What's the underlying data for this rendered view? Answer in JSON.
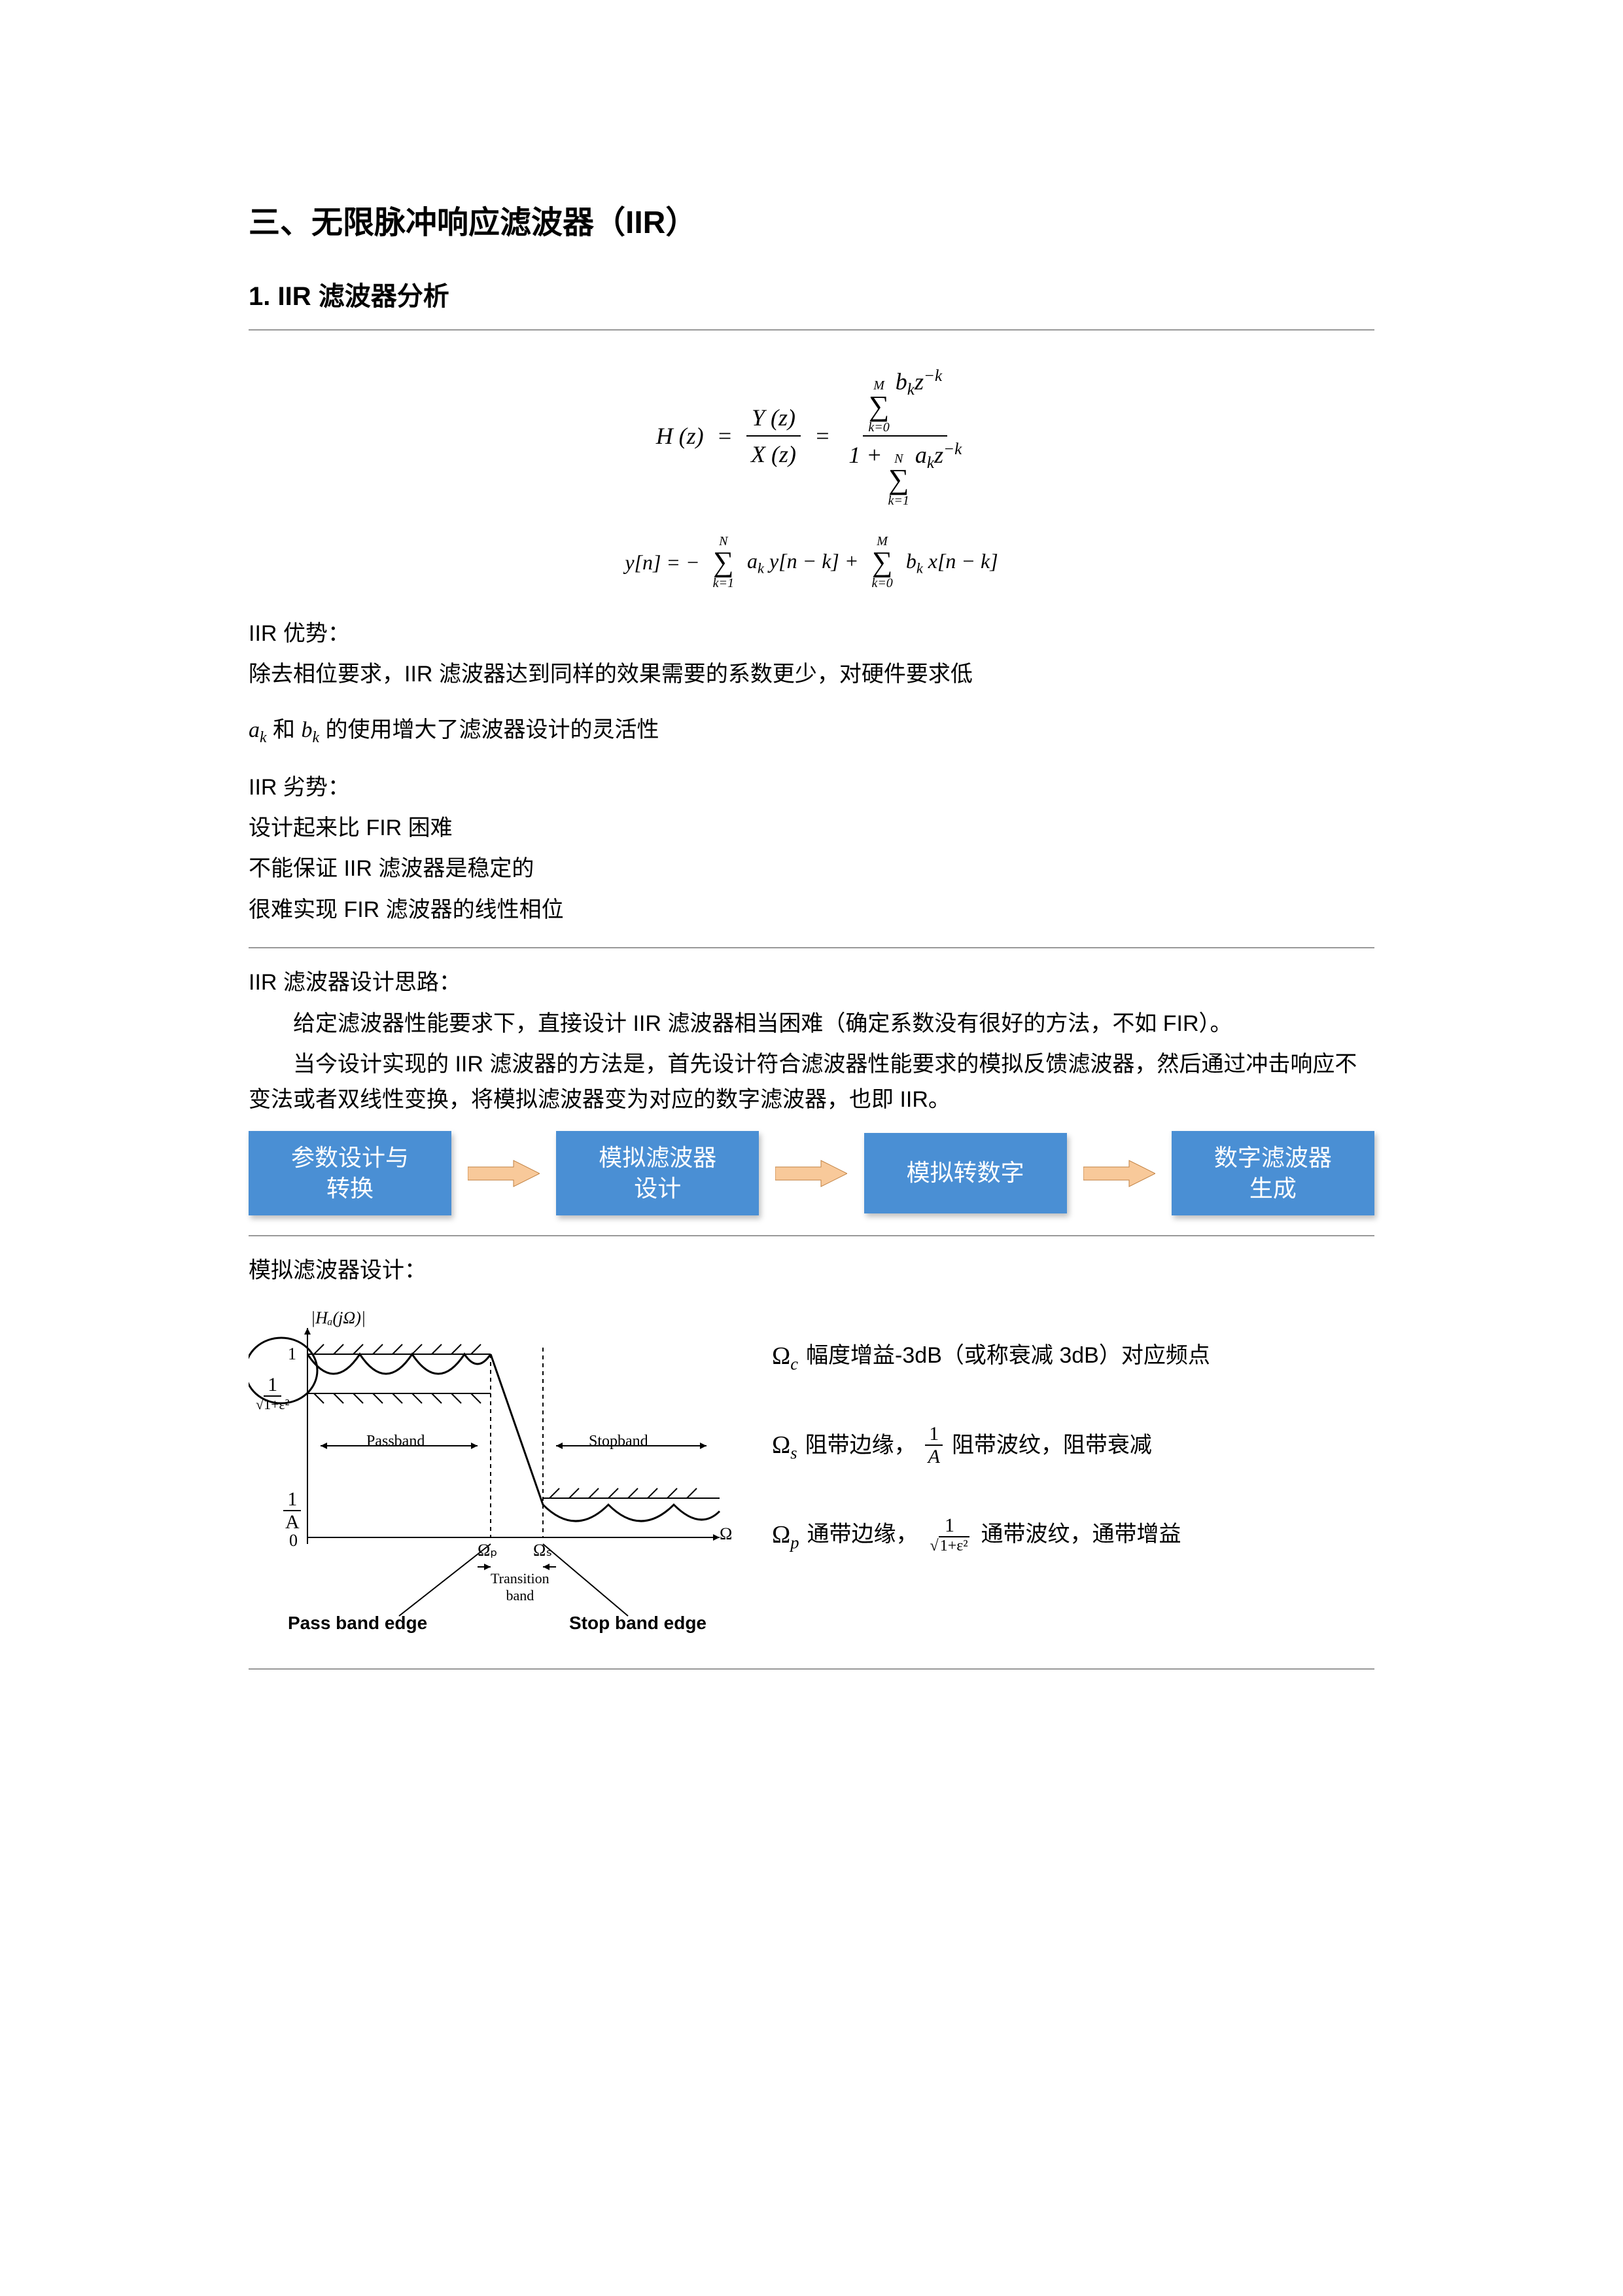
{
  "title": "三、无限脉冲响应滤波器（IIR）",
  "subtitle": "1. IIR 滤波器分析",
  "formula1_lhs": "H (z)",
  "formula1_eq": "=",
  "formula1_frac1_num": "Y (z)",
  "formula1_frac1_den": "X (z)",
  "formula1_frac2_num_sum_upper": "M",
  "formula1_frac2_num_sum_lower": "k=0",
  "formula1_frac2_num_rest": " b",
  "formula1_frac2_num_sub": "k",
  "formula1_frac2_num_rest2": "z",
  "formula1_frac2_num_sup": "−k",
  "formula1_frac2_den_lead": "1 + ",
  "formula1_frac2_den_sum_upper": "N",
  "formula1_frac2_den_sum_lower": "k=1",
  "formula1_frac2_den_rest": " a",
  "formula1_frac2_den_sub": "k",
  "formula1_frac2_den_rest2": "z",
  "formula1_frac2_den_sup": "−k",
  "formula2_lhs": "y[n] = −",
  "formula2_sum1_upper": "N",
  "formula2_sum1_lower": "k=1",
  "formula2_mid1": "a",
  "formula2_mid1_sub": "k",
  "formula2_mid1_rest": " y[n − k] + ",
  "formula2_sum2_upper": "M",
  "formula2_sum2_lower": "k=0",
  "formula2_mid2": "b",
  "formula2_mid2_sub": "k",
  "formula2_mid2_rest": " x[n − k]",
  "adv_title": "IIR 优势：",
  "adv_line1": "除去相位要求，IIR 滤波器达到同样的效果需要的系数更少，对硬件要求低",
  "adv_line2_pre": "",
  "adv_line2_a": "a",
  "adv_line2_ak": "k",
  "adv_line2_mid": " 和 ",
  "adv_line2_b": "b",
  "adv_line2_bk": "k",
  "adv_line2_post": " 的使用增大了滤波器设计的灵活性",
  "dis_title": "IIR 劣势：",
  "dis_line1": "设计起来比 FIR 困难",
  "dis_line2": "不能保证 IIR 滤波器是稳定的",
  "dis_line3": "很难实现 FIR 滤波器的线性相位",
  "design_title": "IIR 滤波器设计思路：",
  "design_p1": "给定滤波器性能要求下，直接设计 IIR 滤波器相当困难（确定系数没有很好的方法，不如 FIR）。",
  "design_p2": "当今设计实现的 IIR 滤波器的方法是，首先设计符合滤波器性能要求的模拟反馈滤波器，然后通过冲击响应不变法或者双线性变换，将模拟滤波器变为对应的数字滤波器，也即 IIR。",
  "flow": {
    "box1": "参数设计与\n转换",
    "box2": "模拟滤波器\n设计",
    "box3": "模拟转数字",
    "box4": "数字滤波器\n生成",
    "arrow_fill": "#f8c99a",
    "arrow_stroke": "#c08040",
    "box_bg": "#4a8fd4",
    "box_fg": "#ffffff"
  },
  "analog_title": "模拟滤波器设计：",
  "diagram": {
    "ylabel": "|Hₐ(jΩ)|",
    "one": "1",
    "y_eps_num": "1",
    "y_eps_den": "√1+ε²",
    "y_A_num": "1",
    "y_A_den": "A",
    "zero": "0",
    "passband": "Passband",
    "stopband": "Stopband",
    "omega_p": "Ωₚ",
    "omega_s": "Ωₛ",
    "omega_axis": "Ω",
    "transition": "Transition\nband",
    "passband_edge": "Pass band edge",
    "stopband_edge": "Stop band edge",
    "hatch_color": "#000000",
    "line_color": "#000000"
  },
  "defs": {
    "row1_sym": "Ω",
    "row1_sub": "c",
    "row1_text": " 幅度增益-3dB（或称衰减 3dB）对应频点",
    "row2_sym": "Ω",
    "row2_sub": "s",
    "row2_pre": " 阻带边缘，",
    "row2_frac_num": "1",
    "row2_frac_den": "A",
    "row2_post": "  阻带波纹，阻带衰减",
    "row3_sym": "Ω",
    "row3_sub": "p",
    "row3_pre": " 通带边缘，",
    "row3_frac_num": "1",
    "row3_frac_den": "√1+ε²",
    "row3_post": "  通带波纹，通带增益"
  }
}
